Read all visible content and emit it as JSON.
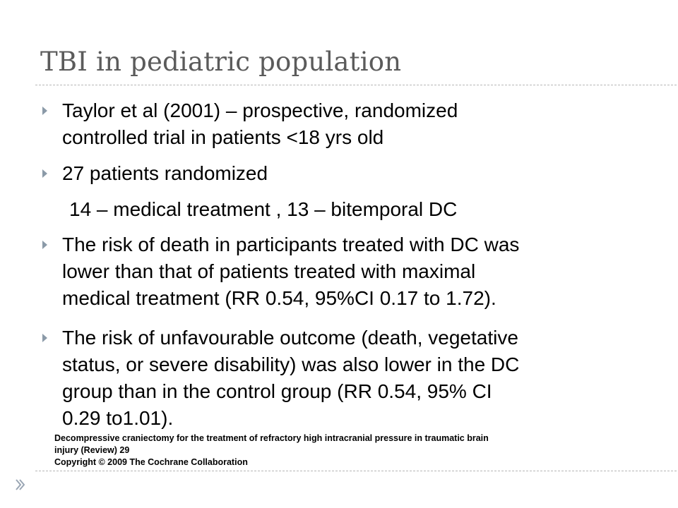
{
  "slide": {
    "title": "TBI in pediatric population",
    "bullets": [
      {
        "lines": [
          "Taylor et al (2001) – prospective, randomized",
          "controlled trial in patients <18 yrs old"
        ]
      },
      {
        "lines": [
          "27 patients randomized"
        ]
      },
      {
        "lines": [
          "The risk of death in participants treated with DC was",
          "lower than that of patients treated with maximal",
          "medical treatment (RR 0.54, 95%CI 0.17 to 1.72)."
        ]
      },
      {
        "lines": [
          "The risk of unfavourable outcome (death, vegetative",
          "status, or severe disability) was also lower in the DC",
          "group than in the control group (RR 0.54, 95% CI",
          "0.29 to1.01)."
        ]
      }
    ],
    "sub_line": "14 – medical treatment , 13 – bitemporal DC",
    "caption": [
      "Decompressive craniectomy for the treatment of refractory high intracranial pressure in traumatic brain",
      "injury (Review) 29",
      "Copyright © 2009 The Cochrane Collaboration"
    ],
    "icons": {
      "bullet": "triangle-right-icon",
      "corner": "double-chevron-right-icon"
    },
    "colors": {
      "title": "#5b5b5b",
      "bullet": "#8b9aa8",
      "rule": "#b7b7b7"
    }
  }
}
